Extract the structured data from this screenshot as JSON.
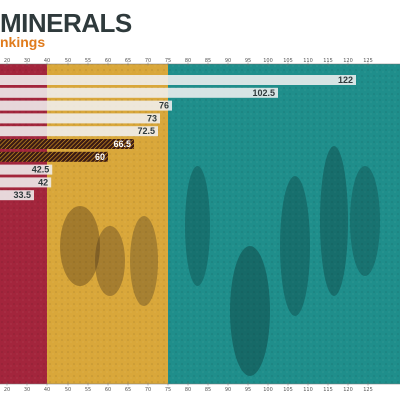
{
  "header": {
    "title": "MINERALS",
    "subtitle": "nkings"
  },
  "colors": {
    "band_red": "#a3253c",
    "band_gold": "#d9a73a",
    "band_teal": "#1f8e8b",
    "bar_fill": "#f0f0f0",
    "text_dark": "#2f3a3c",
    "accent": "#e07b1c"
  },
  "chart_data": {
    "type": "bar",
    "orientation": "horizontal",
    "title": "MINERALS",
    "subtitle": "nkings",
    "x_ticks": [
      20,
      30,
      40,
      50,
      55,
      60,
      65,
      70,
      75,
      80,
      85,
      90,
      95,
      100,
      105,
      110,
      115,
      120,
      125
    ],
    "values": [
      122,
      102.5,
      76,
      73,
      72.5,
      66.5,
      60,
      42.5,
      42,
      33.5
    ],
    "labels": [
      "122",
      "102.5",
      "76",
      "73",
      "72.5",
      "66.5",
      "60",
      "42.5",
      "42",
      "33.5"
    ],
    "highlight_indices": [
      5,
      6
    ],
    "bands": [
      {
        "color": "red"
      },
      {
        "color": "gold"
      },
      {
        "color": "teal"
      }
    ],
    "grid": false,
    "legend": "none"
  }
}
